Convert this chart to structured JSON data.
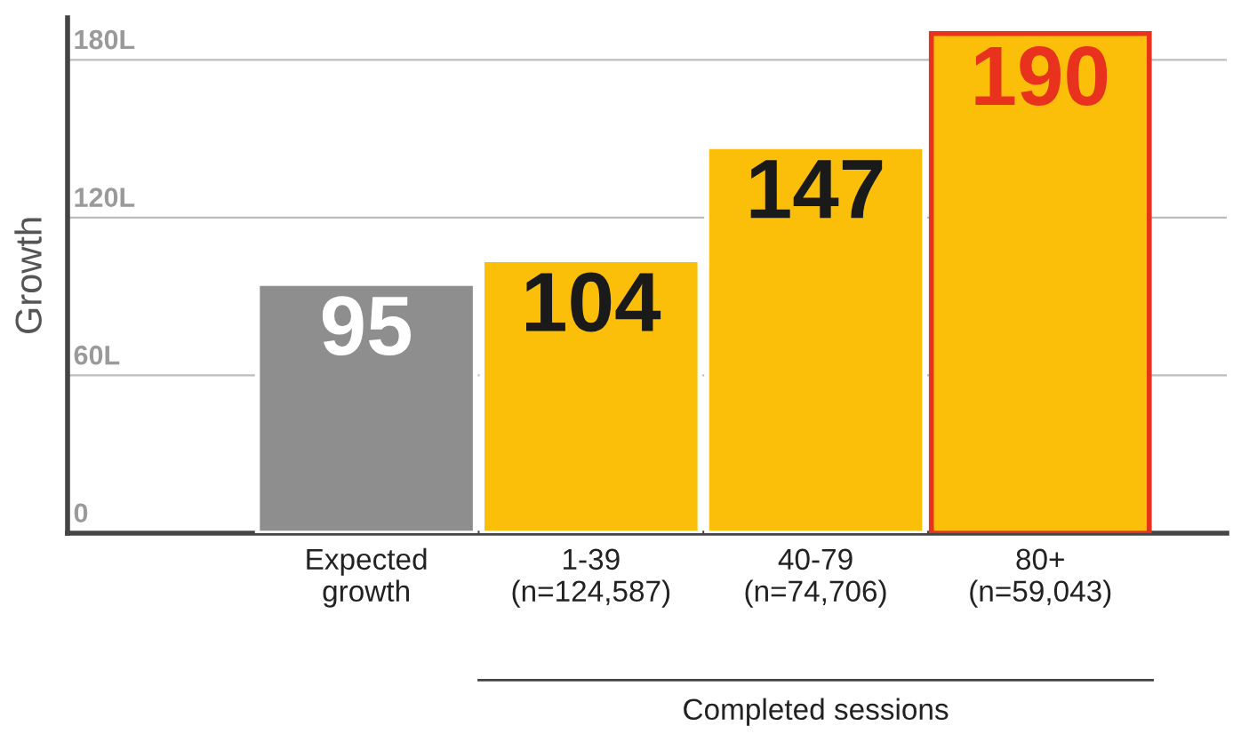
{
  "chart_data": {
    "type": "bar",
    "ylabel": "Growth",
    "categories": [
      "Expected\ngrowth",
      "1-39\n(n=124,587)",
      "40-79\n(n=74,706)",
      "80+\n(n=59,043)"
    ],
    "values": [
      95,
      104,
      147,
      190
    ],
    "colors": [
      "#8e8e8e",
      "#fbbf0a",
      "#fbbf0a",
      "#fbbf0a"
    ],
    "ylim": [
      0,
      196
    ],
    "yticks": [
      {
        "value": 0,
        "label": "0"
      },
      {
        "value": 60,
        "label": "60L"
      },
      {
        "value": 120,
        "label": "120L"
      },
      {
        "value": 180,
        "label": "180L"
      }
    ],
    "grid": "y",
    "data_labels": true,
    "legend": false,
    "annotations": [
      "Completed sessions"
    ]
  }
}
